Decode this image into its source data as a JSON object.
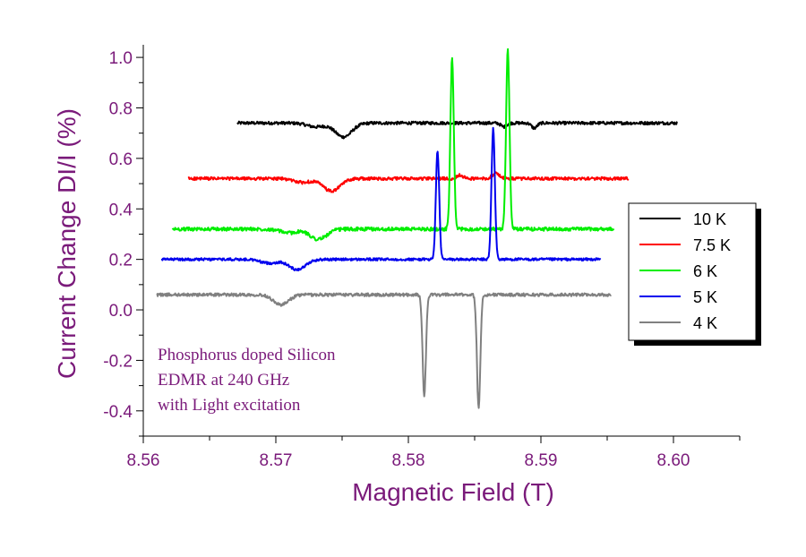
{
  "chart_data": {
    "type": "line",
    "xlabel": "Magnetic Field (T)",
    "ylabel": "Current Change DI/I (%)",
    "xlim": [
      8.56,
      8.605
    ],
    "ylim": [
      -0.5,
      1.05
    ],
    "xticks": [
      "8.56",
      "8.57",
      "8.58",
      "8.59",
      "8.60"
    ],
    "yticks": [
      "-0.4",
      "-0.2",
      "0.0",
      "0.2",
      "0.4",
      "0.6",
      "0.8",
      "1.0"
    ],
    "annotation": [
      "Phosphorus doped Silicon",
      "EDMR at 240 GHz",
      "with Light excitation"
    ],
    "legend_position": "right",
    "series": [
      {
        "name": "10 K",
        "color": "#000000",
        "x_range": [
          8.5671,
          8.6003
        ],
        "baseline": 0.74,
        "noise": 0.006,
        "features": [
          {
            "x": 8.5751,
            "a": -0.055,
            "w": 0.0009
          },
          {
            "x": 8.573,
            "a": -0.015,
            "w": 0.0009
          },
          {
            "x": 8.5872,
            "a": -0.015,
            "w": 0.0003
          },
          {
            "x": 8.5895,
            "a": -0.02,
            "w": 0.0003
          }
        ]
      },
      {
        "name": "7.5 K",
        "color": "#ff0000",
        "x_range": [
          8.5634,
          8.5966
        ],
        "baseline": 0.52,
        "noise": 0.006,
        "features": [
          {
            "x": 8.5742,
            "a": -0.05,
            "w": 0.0009
          },
          {
            "x": 8.572,
            "a": -0.015,
            "w": 0.0009
          },
          {
            "x": 8.5866,
            "a": 0.02,
            "w": 0.0004
          },
          {
            "x": 8.5839,
            "a": 0.015,
            "w": 0.0003
          }
        ]
      },
      {
        "name": "6 K",
        "color": "#00ee00",
        "x_range": [
          8.5622,
          8.5955
        ],
        "baseline": 0.32,
        "noise": 0.007,
        "features": [
          {
            "x": 8.5732,
            "a": -0.04,
            "w": 0.0009
          },
          {
            "x": 8.571,
            "a": -0.015,
            "w": 0.0009
          },
          {
            "x": 8.5833,
            "a": 0.68,
            "w": 0.00018
          },
          {
            "x": 8.5875,
            "a": 0.72,
            "w": 0.00018
          }
        ]
      },
      {
        "name": "5 K",
        "color": "#0000ee",
        "x_range": [
          8.5614,
          8.5945
        ],
        "baseline": 0.2,
        "noise": 0.005,
        "features": [
          {
            "x": 8.5716,
            "a": -0.04,
            "w": 0.0009
          },
          {
            "x": 8.5695,
            "a": -0.015,
            "w": 0.0009
          },
          {
            "x": 8.5822,
            "a": 0.43,
            "w": 0.00018
          },
          {
            "x": 8.5864,
            "a": 0.52,
            "w": 0.00018
          }
        ]
      },
      {
        "name": "4 K",
        "color": "#808080",
        "x_range": [
          8.561,
          8.5953
        ],
        "baseline": 0.06,
        "noise": 0.006,
        "features": [
          {
            "x": 8.5704,
            "a": -0.04,
            "w": 0.0008
          },
          {
            "x": 8.5812,
            "a": -0.4,
            "w": 0.00018
          },
          {
            "x": 8.5853,
            "a": -0.45,
            "w": 0.00018
          }
        ]
      }
    ]
  }
}
